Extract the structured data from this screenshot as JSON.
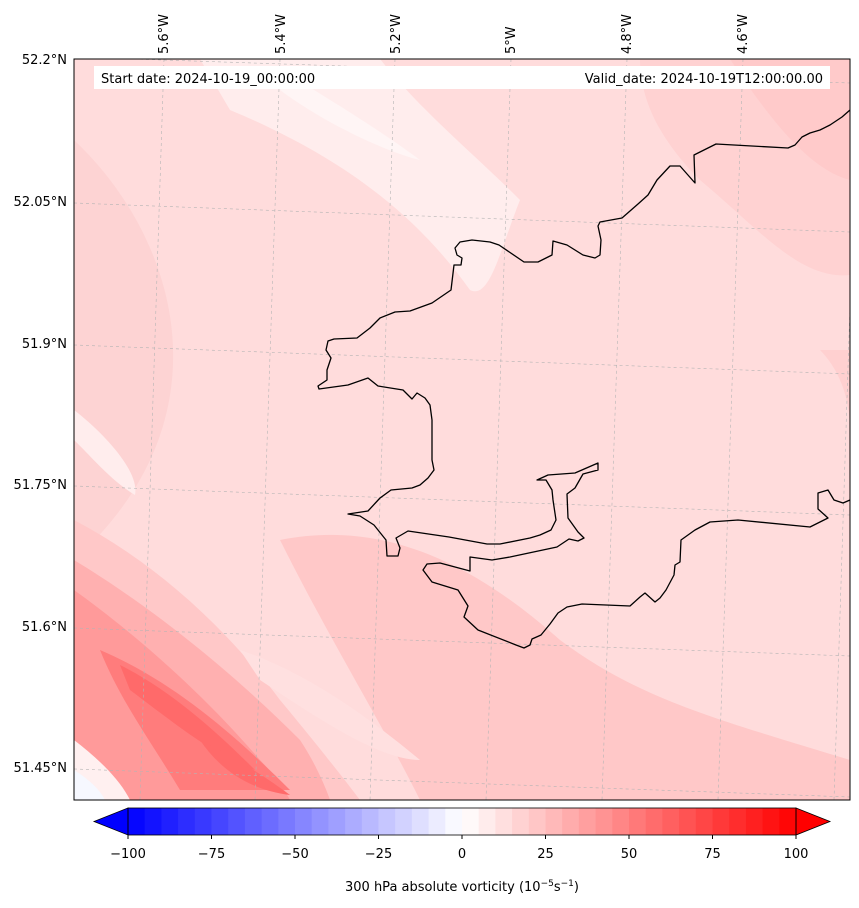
{
  "header": {
    "start_label": "Start date: 2024-10-19_00:00:00",
    "valid_label": "Valid_date: 2024-10-19T12:00:00.00"
  },
  "map": {
    "lon_ticks": [
      "5.6°W",
      "5.4°W",
      "5.2°W",
      "5°W",
      "4.8°W",
      "4.6°W"
    ],
    "lat_ticks": [
      "52.2°N",
      "52.05°N",
      "51.9°N",
      "51.75°N",
      "51.6°N",
      "51.45°N"
    ],
    "gridlines": "on",
    "coastline": "on"
  },
  "colorbar": {
    "title_prefix": "300 hPa absolute vorticity (10",
    "title_exp1": "−5",
    "title_mid": "s",
    "title_exp2": "−1",
    "title_suffix": ")",
    "tick_labels": [
      "−100",
      "−75",
      "−50",
      "−25",
      "0",
      "25",
      "50",
      "75",
      "100"
    ],
    "min": -100,
    "max": 100,
    "extend": "both",
    "colormap": "bwr",
    "low_color": "#0000ff",
    "mid_color": "#ffffff",
    "high_color": "#ff0000"
  },
  "colors": {
    "background_field": "#ffdcdc",
    "coast_line": "#000000",
    "grid_line": "#b4b4b4"
  }
}
